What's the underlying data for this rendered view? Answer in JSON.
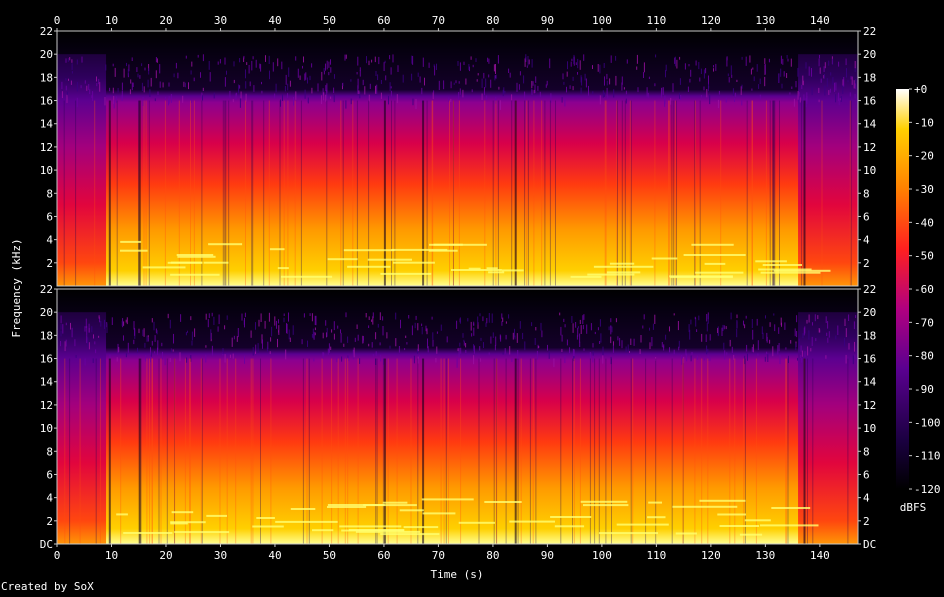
{
  "chart_data": {
    "type": "heatmap",
    "subtype": "spectrogram",
    "title": "",
    "xlabel": "Time (s)",
    "ylabel": "Frequency (kHz)",
    "credit": "Created by SoX",
    "colorbar_label": "dBFS",
    "xlim": [
      0,
      147
    ],
    "ylim_khz": [
      0,
      22
    ],
    "x_ticks": [
      0,
      10,
      20,
      30,
      40,
      50,
      60,
      70,
      80,
      90,
      100,
      110,
      120,
      130,
      140
    ],
    "y_ticks_upper": [
      "22",
      "20",
      "18",
      "16",
      "14",
      "12",
      "10",
      "8",
      "6",
      "4",
      "2"
    ],
    "y_ticks_lower": [
      "22",
      "20",
      "18",
      "16",
      "14",
      "12",
      "10",
      "8",
      "6",
      "4",
      "2",
      "DC"
    ],
    "y_tick_values_upper": [
      22,
      20,
      18,
      16,
      14,
      12,
      10,
      8,
      6,
      4,
      2
    ],
    "y_tick_values_lower": [
      22,
      20,
      18,
      16,
      14,
      12,
      10,
      8,
      6,
      4,
      2,
      0
    ],
    "colorbar_ticks": [
      "+0",
      "-10",
      "-20",
      "-30",
      "-40",
      "-50",
      "-60",
      "-70",
      "-80",
      "-90",
      "-100",
      "-110",
      "-120"
    ],
    "colorbar_values": [
      0,
      -10,
      -20,
      -30,
      -40,
      -50,
      -60,
      -70,
      -80,
      -90,
      -100,
      -110,
      -120
    ],
    "colorbar_range_dbfs": [
      -120,
      0
    ],
    "channels": 2,
    "colormap": [
      "#000000",
      "#1a0033",
      "#3a0070",
      "#7a00a0",
      "#b0007a",
      "#e00030",
      "#ff3000",
      "#ff8000",
      "#ffc000",
      "#ffff80",
      "#ffffff"
    ],
    "lowpass_cutoff_khz": 16,
    "quiet_sections_s": [
      [
        0,
        9
      ],
      [
        136,
        147
      ]
    ]
  }
}
